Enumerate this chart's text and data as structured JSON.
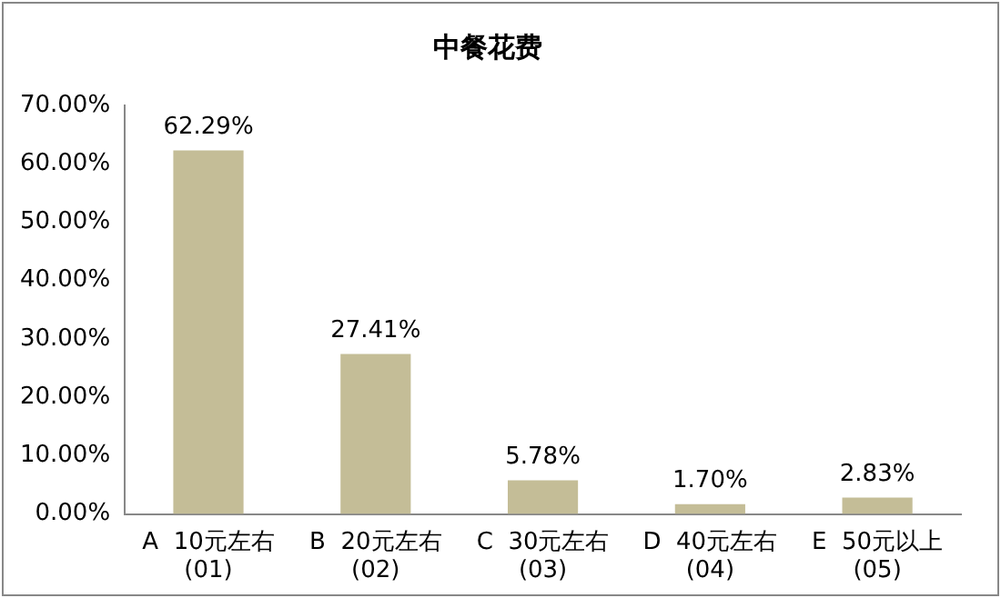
{
  "chart_data": {
    "type": "bar",
    "title": "中餐花费",
    "categories": [
      "A  10元左右 (01)",
      "B  20元左右 (02)",
      "C  30元左右 (03)",
      "D  40元左右 (04)",
      "E  50元以上 (05)"
    ],
    "values": [
      62.29,
      27.41,
      5.78,
      1.7,
      2.83
    ],
    "value_labels": [
      "62.29%",
      "27.41%",
      "5.78%",
      "1.70%",
      "2.83%"
    ],
    "color": "#c4bd97",
    "ylim": [
      0,
      70
    ],
    "yticks": [
      {
        "value": 0,
        "label": "0.00%"
      },
      {
        "value": 10,
        "label": "10.00%"
      },
      {
        "value": 20,
        "label": "20.00%"
      },
      {
        "value": 30,
        "label": "30.00%"
      },
      {
        "value": 40,
        "label": "40.00%"
      },
      {
        "value": 50,
        "label": "50.00%"
      },
      {
        "value": 60,
        "label": "60.00%"
      },
      {
        "value": 70,
        "label": "70.00%"
      }
    ],
    "grid": false,
    "legend": false
  }
}
